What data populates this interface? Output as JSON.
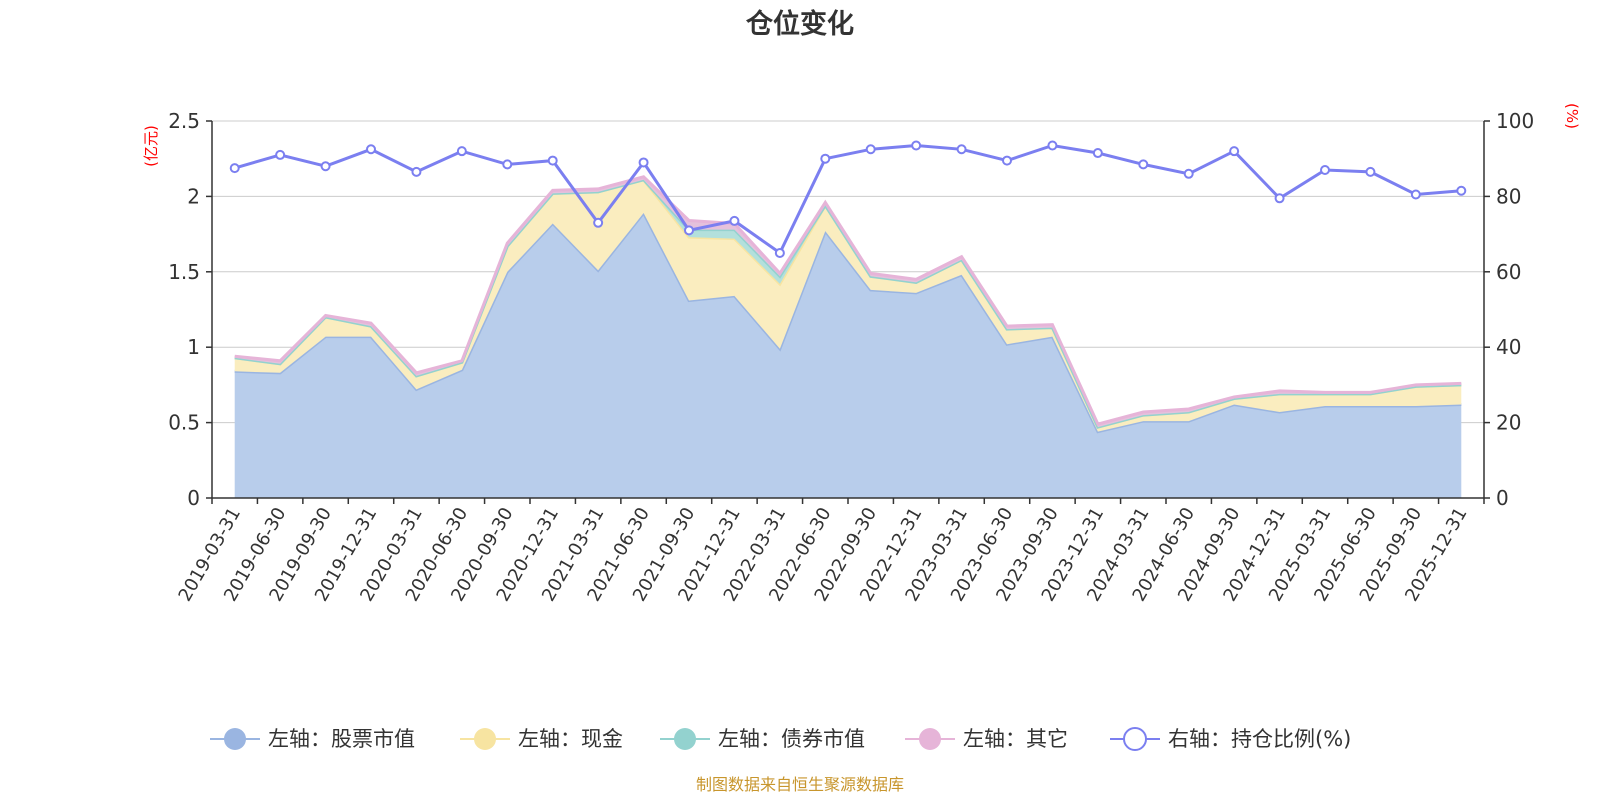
{
  "chart_data": {
    "type": "area",
    "title": "仓位变化",
    "left_axis": {
      "unit": "(亿元)",
      "ylim": [
        0,
        2.5
      ],
      "ticks": [
        "0",
        "0.5",
        "1",
        "1.5",
        "2",
        "2.5"
      ]
    },
    "right_axis": {
      "unit": "(%)",
      "ylim": [
        0,
        100
      ],
      "ticks": [
        "0",
        "20",
        "40",
        "60",
        "80",
        "100"
      ]
    },
    "categories": [
      "2019-03-31",
      "2019-06-30",
      "2019-09-30",
      "2019-12-31",
      "2020-03-31",
      "2020-06-30",
      "2020-09-30",
      "2020-12-31",
      "2021-03-31",
      "2021-06-30",
      "2021-09-30",
      "2021-12-31",
      "2022-03-31",
      "2022-06-30",
      "2022-09-30",
      "2022-12-31",
      "2023-03-31",
      "2023-06-30",
      "2023-09-30",
      "2023-12-31",
      "2024-03-31",
      "2024-06-30",
      "2024-09-30",
      "2024-12-31",
      "2025-03-31",
      "2025-06-30",
      "2025-09-30",
      "2025-12-31"
    ],
    "series": [
      {
        "name": "左轴：股票市值",
        "axis": "left",
        "type": "area",
        "color": "#9ab5e1",
        "fill": "#b8cdeb",
        "values": [
          0.84,
          0.83,
          1.07,
          1.07,
          0.72,
          0.85,
          1.5,
          1.82,
          1.51,
          1.89,
          1.31,
          1.34,
          0.99,
          1.77,
          1.38,
          1.36,
          1.48,
          1.02,
          1.07,
          0.44,
          0.51,
          0.51,
          0.62,
          0.57,
          0.61,
          0.61,
          0.61,
          0.62
        ]
      },
      {
        "name": "左轴：现金",
        "axis": "left",
        "type": "area",
        "color": "#f7e4a1",
        "fill": "#faedbf",
        "values": [
          0.09,
          0.06,
          0.13,
          0.07,
          0.09,
          0.05,
          0.17,
          0.2,
          0.52,
          0.22,
          0.42,
          0.38,
          0.43,
          0.17,
          0.09,
          0.07,
          0.1,
          0.1,
          0.06,
          0.03,
          0.04,
          0.06,
          0.04,
          0.12,
          0.08,
          0.08,
          0.13,
          0.13
        ]
      },
      {
        "name": "左轴：债券市值",
        "axis": "left",
        "type": "area",
        "color": "#93d2cf",
        "fill": "#b3e0dc",
        "values": [
          0,
          0,
          0,
          0,
          0,
          0,
          0,
          0,
          0,
          0,
          0.05,
          0.06,
          0.05,
          0,
          0,
          0,
          0,
          0,
          0,
          0,
          0,
          0,
          0,
          0,
          0,
          0,
          0,
          0
        ]
      },
      {
        "name": "左轴：其它",
        "axis": "left",
        "type": "area",
        "color": "#e6b4d8",
        "fill": "#e5c1dc",
        "values": [
          0.01,
          0.02,
          0.01,
          0.02,
          0.02,
          0.01,
          0.02,
          0.02,
          0.02,
          0.02,
          0.06,
          0.04,
          0.02,
          0.02,
          0.02,
          0.02,
          0.02,
          0.02,
          0.02,
          0.02,
          0.02,
          0.02,
          0.01,
          0.02,
          0.01,
          0.01,
          0.01,
          0.01
        ]
      },
      {
        "name": "右轴：持仓比例(%)",
        "axis": "right",
        "type": "line",
        "color": "#7b7ff0",
        "values": [
          87.5,
          91,
          88,
          92.5,
          86.5,
          92,
          88.5,
          89.5,
          73,
          89,
          71,
          73.5,
          65,
          90,
          92.5,
          93.5,
          92.5,
          89.5,
          93.5,
          91.5,
          88.5,
          86,
          92,
          79.5,
          87,
          86.5,
          80.5,
          81.5
        ]
      }
    ],
    "legend_position": "bottom",
    "grid": true
  },
  "footer": {
    "source": "制图数据来自恒生聚源数据库"
  }
}
